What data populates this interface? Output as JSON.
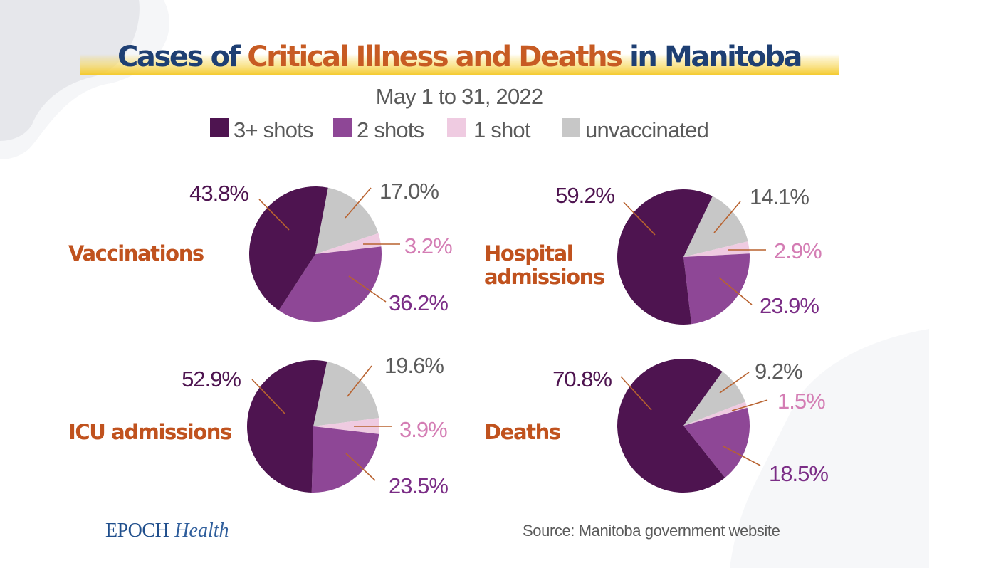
{
  "chart_data": [
    {
      "type": "pie",
      "title": "Cases of Critical Illness and Deaths in Manitoba",
      "subtitle": "May 1 to 31, 2022",
      "panel": "Vaccinations",
      "categories": [
        "3+ shots",
        "2 shots",
        "1 shot",
        "unvaccinated"
      ],
      "values": [
        43.8,
        36.2,
        3.2,
        17.0
      ],
      "labels": [
        "43.8%",
        "36.2%",
        "3.2%",
        "17.0%"
      ]
    },
    {
      "type": "pie",
      "panel": "Hospital admissions",
      "categories": [
        "3+ shots",
        "2 shots",
        "1 shot",
        "unvaccinated"
      ],
      "values": [
        59.2,
        23.9,
        2.9,
        14.1
      ],
      "labels": [
        "59.2%",
        "23.9%",
        "2.9%",
        "14.1%"
      ]
    },
    {
      "type": "pie",
      "panel": "ICU admissions",
      "categories": [
        "3+ shots",
        "2 shots",
        "1 shot",
        "unvaccinated"
      ],
      "values": [
        52.9,
        23.5,
        3.9,
        19.6
      ],
      "labels": [
        "52.9%",
        "23.5%",
        "3.9%",
        "19.6%"
      ]
    },
    {
      "type": "pie",
      "panel": "Deaths",
      "categories": [
        "3+ shots",
        "2 shots",
        "1 shot",
        "unvaccinated"
      ],
      "values": [
        70.8,
        18.5,
        1.5,
        9.2
      ],
      "labels": [
        "70.8%",
        "18.5%",
        "1.5%",
        "9.2%"
      ]
    }
  ],
  "header": {
    "title_part1": "Cases of ",
    "title_part2": "Critical Illness and Deaths",
    "title_part3": " in Manitoba",
    "subtitle": "May 1 to 31, 2022"
  },
  "legend": [
    {
      "label": "3+ shots",
      "color": "#4E1450"
    },
    {
      "label": "2 shots",
      "color": "#8E4796"
    },
    {
      "label": "1 shot",
      "color": "#EFCBE1"
    },
    {
      "label": "unvaccinated",
      "color": "#C7C7C7"
    }
  ],
  "panels": [
    {
      "label_lines": [
        "Vaccinations"
      ]
    },
    {
      "label_lines": [
        "Hospital",
        "admissions"
      ]
    },
    {
      "label_lines": [
        "ICU admissions"
      ]
    },
    {
      "label_lines": [
        "Deaths"
      ]
    }
  ],
  "colors": {
    "title_blue": "#1E3F73",
    "title_orange": "#C75B23",
    "highlight_yellow": "#F6CF2D",
    "category_orange": "#C0521E",
    "leader_line": "#B8622F",
    "pct_3plus": "#4E1450",
    "pct_2shots": "#7B2D86",
    "pct_1shot": "#D47DB4",
    "pct_unvax": "#5B5B5B"
  },
  "footer": {
    "logo_epoch": "EPOCH",
    "logo_health": "Health",
    "source": "Source: Manitoba government website"
  }
}
